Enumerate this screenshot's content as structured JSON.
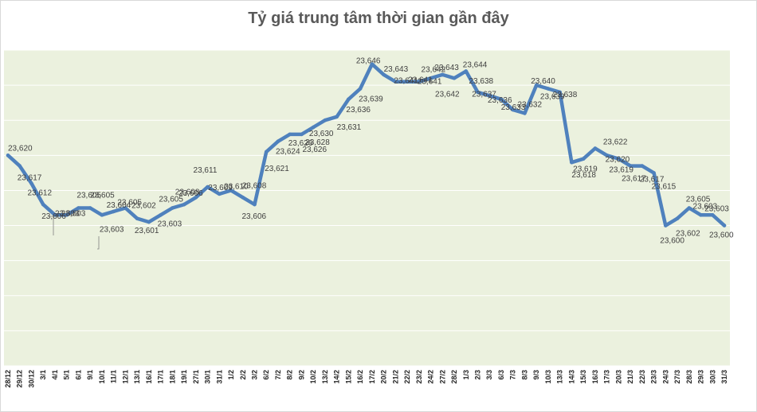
{
  "chart_data": {
    "type": "line",
    "title": "Tỷ giá trung tâm thời gian gần đây",
    "xlabel": "",
    "ylabel": "",
    "ylim": [
      23560,
      23650
    ],
    "grid": true,
    "legend": "none",
    "colors": {
      "line": "#4f81bd",
      "plot_bg": "#ebf1de",
      "grid": "#ffffff"
    },
    "categories": [
      "28/12",
      "29/12",
      "30/12",
      "3/1",
      "4/1",
      "5/1",
      "6/1",
      "9/1",
      "10/1",
      "11/1",
      "12/1",
      "13/1",
      "16/1",
      "17/1",
      "18/1",
      "19/1",
      "27/1",
      "30/1",
      "31/1",
      "1/2",
      "2/2",
      "3/2",
      "6/2",
      "7/2",
      "8/2",
      "9/2",
      "10/2",
      "13/2",
      "14/2",
      "15/2",
      "16/2",
      "17/2",
      "20/2",
      "21/2",
      "22/2",
      "23/2",
      "24/2",
      "27/2",
      "28/2",
      "1/3",
      "2/3",
      "3/3",
      "6/3",
      "7/3",
      "8/3",
      "9/3",
      "10/3",
      "13/3",
      "14/3",
      "15/3",
      "16/3",
      "17/3",
      "20/3",
      "21/3",
      "22/3",
      "23/3",
      "24/3",
      "27/3",
      "28/3",
      "29/3",
      "30/3",
      "31/3"
    ],
    "values": [
      23620,
      23617,
      23612,
      23606,
      23603,
      23603,
      23605,
      23605,
      23603,
      23604,
      23605,
      23602,
      23601,
      23603,
      23605,
      23606,
      23608,
      23611,
      23609,
      23610,
      23608,
      23606,
      23621,
      23624,
      23626,
      23626,
      23628,
      23630,
      23631,
      23636,
      23639,
      23646,
      23643,
      23641,
      23641,
      23641,
      23642,
      23643,
      23642,
      23644,
      23638,
      23637,
      23636,
      23633,
      23632,
      23640,
      23639,
      23638,
      23618,
      23619,
      23622,
      23620,
      23619,
      23617,
      23617,
      23615,
      23600,
      23602,
      23605,
      23603,
      23603,
      23600
    ],
    "data_labels": [
      "23,620",
      "23,617",
      "23,612",
      "23,606",
      "23,603",
      "23,603",
      "23,605",
      "23,605",
      "23,603",
      "23,604",
      "23,605",
      "23,602",
      "23,601",
      "23,603",
      "23,605",
      "23,606",
      "23,608",
      "23,611",
      "23,609",
      "23,610",
      "23,608",
      "23,606",
      "23,621",
      "23,624",
      "23,626",
      "23,626",
      "23,628",
      "23,630",
      "23,631",
      "23,636",
      "23,639",
      "23,646",
      "23,643",
      "23,641",
      "23,641",
      "23,641",
      "23,642",
      "23,643",
      "23,642",
      "23,644",
      "23,638",
      "23,637",
      "23,636",
      "23,633",
      "23,632",
      "23,640",
      "23,639",
      "23,638",
      "23,618",
      "23,619",
      "23,622",
      "23,620",
      "23,619",
      "23,617",
      "23,617",
      "23,615",
      "23,600",
      "23,602",
      "23,605",
      "23,603",
      "23,603",
      "23,600"
    ]
  }
}
